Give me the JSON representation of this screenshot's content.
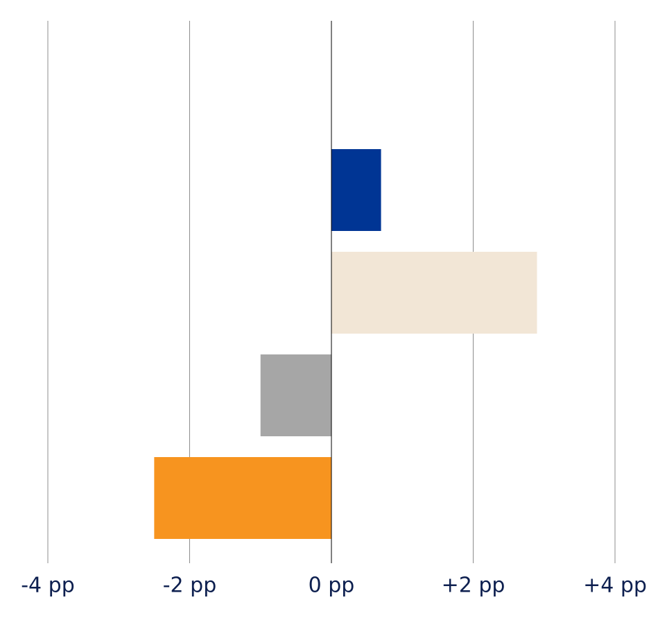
{
  "chart_data": {
    "type": "hbar",
    "categories": [
      null,
      null,
      null,
      null,
      null
    ],
    "values": [
      null,
      0.7,
      2.9,
      -1.0,
      -2.5
    ],
    "colors": [
      "#003594",
      "#003594",
      "#f2e6d6",
      "#a6a6a6",
      "#f7941f"
    ],
    "xlim": [
      -4,
      4
    ],
    "xticks": [
      {
        "value": -4,
        "label": "-4 pp"
      },
      {
        "value": -2,
        "label": "-2 pp"
      },
      {
        "value": 0,
        "label": "0 pp"
      },
      {
        "value": 2,
        "label": "+2 pp"
      },
      {
        "value": 4,
        "label": "+4 pp"
      }
    ],
    "grid": true
  }
}
